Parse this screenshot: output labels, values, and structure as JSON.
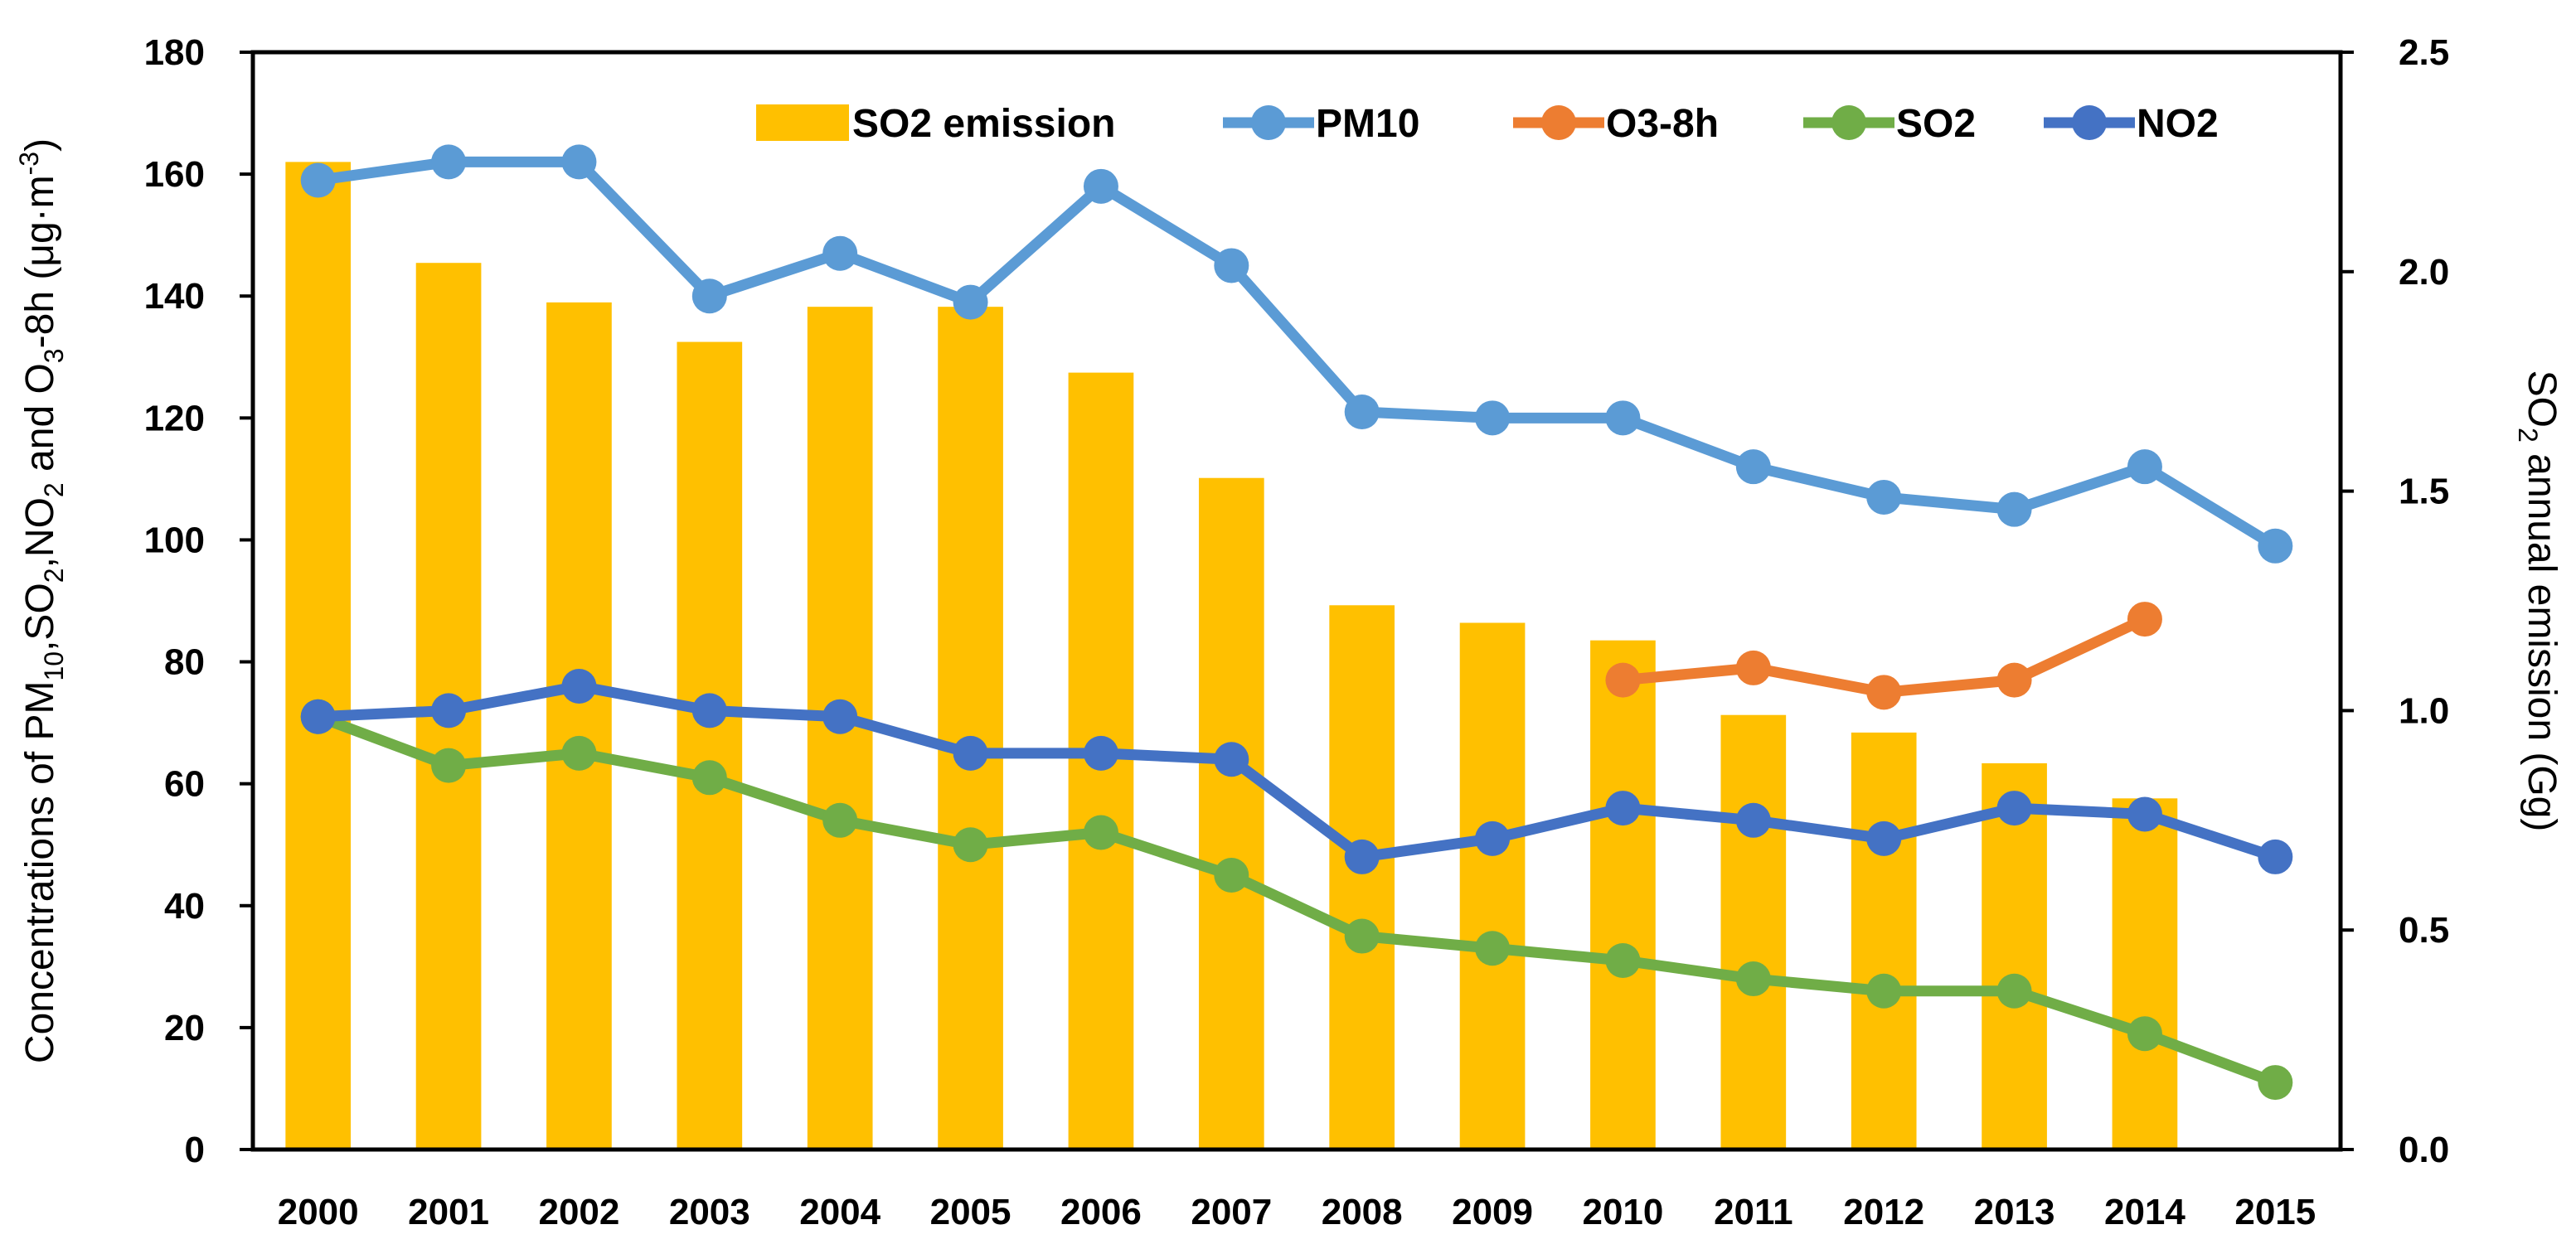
{
  "chart_data": {
    "type": "bar",
    "title": "",
    "categories": [
      "2000",
      "2001",
      "2002",
      "2003",
      "2004",
      "2005",
      "2006",
      "2007",
      "2008",
      "2009",
      "2010",
      "2011",
      "2012",
      "2013",
      "2014",
      "2015"
    ],
    "bar_series": {
      "name": "SO2 emission",
      "axis": "right",
      "color": "#FFC000",
      "values": [
        2.25,
        2.02,
        1.93,
        1.84,
        1.92,
        1.92,
        1.77,
        1.53,
        1.24,
        1.2,
        1.16,
        0.99,
        0.95,
        0.88,
        0.8,
        null
      ]
    },
    "line_series": [
      {
        "name": "PM10",
        "color": "#5B9BD5",
        "values": [
          159,
          162,
          162,
          140,
          147,
          139,
          158,
          145,
          121,
          120,
          120,
          112,
          107,
          105,
          112,
          99
        ]
      },
      {
        "name": "O3-8h",
        "color": "#ED7D31",
        "values": [
          null,
          null,
          null,
          null,
          null,
          null,
          null,
          null,
          null,
          null,
          77,
          79,
          75,
          77,
          87,
          null
        ]
      },
      {
        "name": "SO2",
        "color": "#70AD47",
        "values": [
          71,
          63,
          65,
          61,
          54,
          50,
          52,
          45,
          35,
          33,
          31,
          28,
          26,
          26,
          19,
          11
        ]
      },
      {
        "name": "NO2",
        "color": "#4472C4",
        "values": [
          71,
          72,
          76,
          72,
          71,
          65,
          65,
          64,
          48,
          51,
          56,
          54,
          51,
          56,
          55,
          48
        ]
      }
    ],
    "y_left": {
      "label_parts": [
        "Concentrations of  PM",
        "10",
        ",SO",
        "2",
        ",NO",
        "2",
        " and O",
        "3",
        "-8h (μg·m",
        "-3",
        ")"
      ],
      "ylim": [
        0,
        180
      ],
      "ticks": [
        "0",
        "20",
        "40",
        "60",
        "80",
        "100",
        "120",
        "140",
        "160",
        "180"
      ]
    },
    "y_right": {
      "label_parts": [
        "SO",
        "2",
        " annual  emission (Gg)"
      ],
      "ylim": [
        0,
        2.5
      ],
      "ticks": [
        "0.0",
        "0.5",
        "1.0",
        "1.5",
        "2.0",
        "2.5"
      ]
    },
    "legend_position": "top-right inside plot",
    "grid": false
  }
}
